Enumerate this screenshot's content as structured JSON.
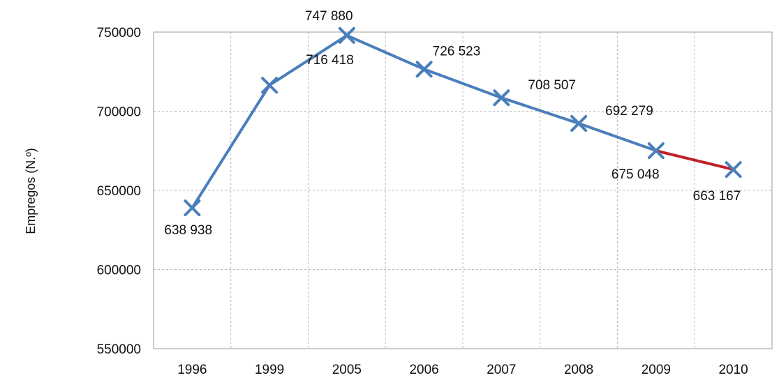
{
  "chart_data": {
    "type": "line",
    "title": "",
    "xlabel": "",
    "ylabel": "Empregos (N.º)",
    "categories": [
      "1996",
      "1999",
      "2005",
      "2006",
      "2007",
      "2008",
      "2009",
      "2010"
    ],
    "values": [
      638938,
      716418,
      747880,
      726523,
      708507,
      692279,
      675048,
      663167
    ],
    "data_labels": [
      "638 938",
      "716 418",
      "747 880",
      "726 523",
      "708 507",
      "692 279",
      "675 048",
      "663 167"
    ],
    "y_ticks": [
      550000,
      600000,
      650000,
      700000,
      750000
    ],
    "y_tick_labels": [
      "550000",
      "600000",
      "650000",
      "700000",
      "750000"
    ],
    "ylim": [
      550000,
      750000
    ],
    "grid": true,
    "marker": "x",
    "colors": {
      "line": "#4a7ebb",
      "last_segment": "#c0202a",
      "grid": "#b9b9b9"
    }
  }
}
